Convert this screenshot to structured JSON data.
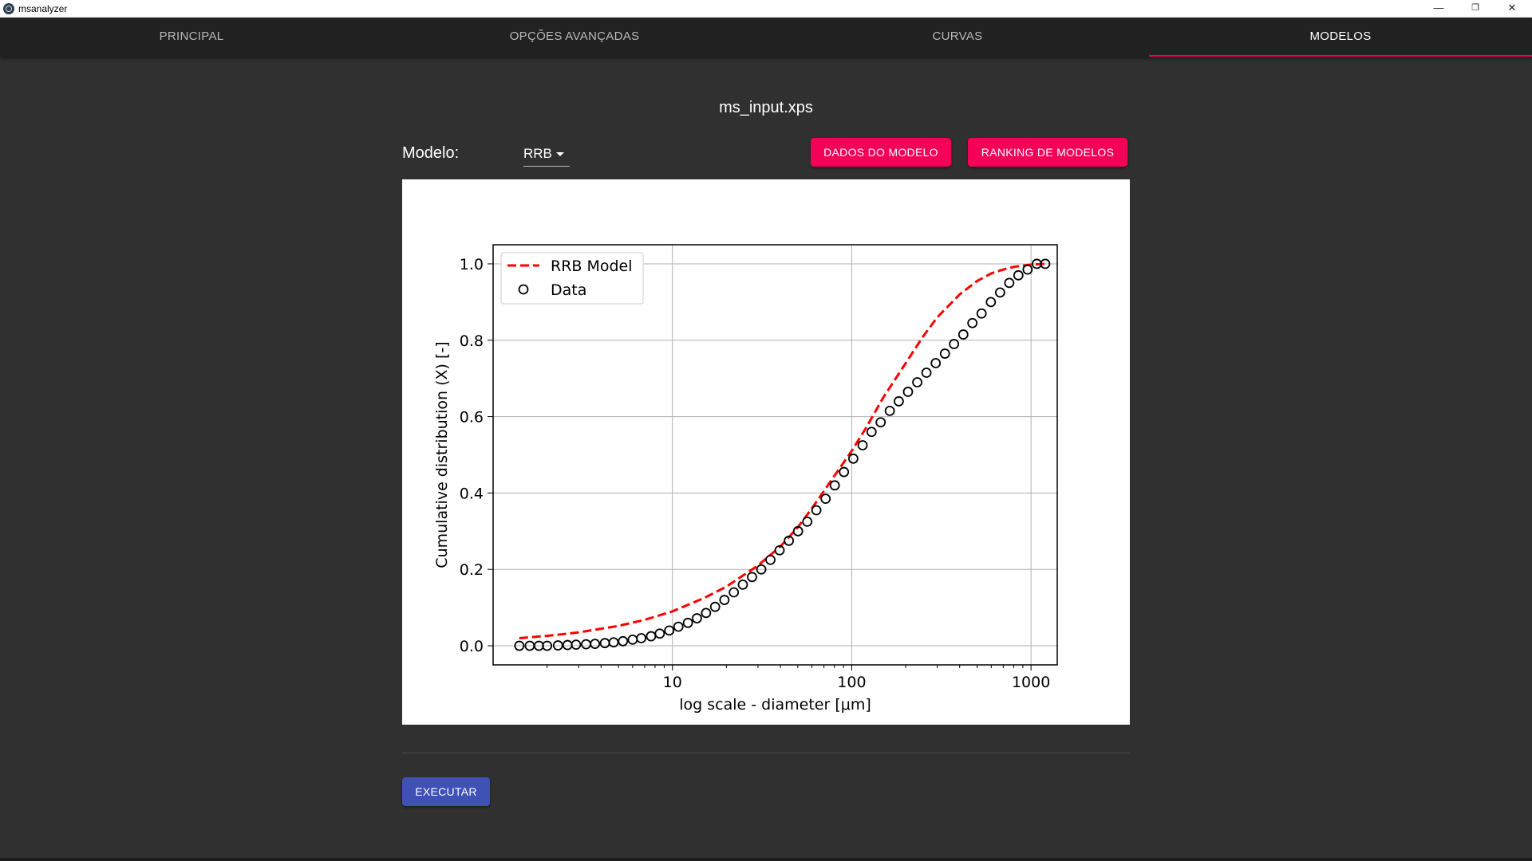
{
  "window": {
    "title": "msanalyzer",
    "minimize": "—",
    "restore": "❐",
    "close": "✕"
  },
  "tabs": [
    {
      "label": "PRINCIPAL",
      "active": false
    },
    {
      "label": "OPÇÕES AVANÇADAS",
      "active": false
    },
    {
      "label": "CURVAS",
      "active": false
    },
    {
      "label": "MODELOS",
      "active": true
    }
  ],
  "main": {
    "filename": "ms_input.xps",
    "model_label": "Modelo:",
    "model_value": "RRB",
    "btn_model_data": "DADOS DO MODELO",
    "btn_ranking": "RANKING DE MODELOS",
    "btn_execute": "EXECUTAR"
  },
  "colors": {
    "accent": "#f50057",
    "primary": "#3f51b5",
    "background": "#303030",
    "navbar": "#212121"
  },
  "chart_data": {
    "type": "line",
    "title": "",
    "xlabel": "log scale - diameter [μm]",
    "ylabel": "Cumulative distribution (X) [-]",
    "xscale": "log",
    "xlim": [
      1.0,
      1400
    ],
    "ylim": [
      -0.05,
      1.05
    ],
    "xticks": [
      10,
      100,
      1000
    ],
    "xtick_labels": [
      "10",
      "100",
      "1000"
    ],
    "yticks": [
      0.0,
      0.2,
      0.4,
      0.6,
      0.8,
      1.0
    ],
    "ytick_labels": [
      "0.0",
      "0.2",
      "0.4",
      "0.6",
      "0.8",
      "1.0"
    ],
    "grid": true,
    "legend_position": "upper-left",
    "series": [
      {
        "name": "RRB Model",
        "kind": "line",
        "style": "dashed",
        "color": "#ff0000",
        "x": [
          1.4,
          2,
          3,
          5,
          7,
          10,
          15,
          20,
          30,
          40,
          50,
          60,
          70,
          80,
          100,
          120,
          150,
          200,
          250,
          300,
          400,
          500,
          600,
          700,
          800,
          1000,
          1200
        ],
        "y": [
          0.02,
          0.026,
          0.035,
          0.052,
          0.068,
          0.09,
          0.125,
          0.155,
          0.21,
          0.26,
          0.31,
          0.36,
          0.405,
          0.445,
          0.51,
          0.57,
          0.65,
          0.74,
          0.81,
          0.86,
          0.92,
          0.955,
          0.975,
          0.985,
          0.992,
          0.998,
          1.0
        ]
      },
      {
        "name": "Data",
        "kind": "scatter",
        "marker": "open-circle",
        "color": "#000000",
        "x": [
          1.4,
          1.6,
          1.8,
          2.0,
          2.3,
          2.6,
          2.9,
          3.3,
          3.7,
          4.2,
          4.7,
          5.3,
          6.0,
          6.7,
          7.6,
          8.5,
          9.6,
          10.8,
          12.2,
          13.7,
          15.4,
          17.3,
          19.5,
          22,
          24.7,
          27.8,
          31.3,
          35.2,
          39.6,
          44.6,
          50.2,
          56.5,
          63.5,
          71.5,
          80.4,
          90.5,
          102,
          115,
          129,
          145,
          163,
          183,
          206,
          232,
          261,
          294,
          331,
          372,
          419,
          471,
          530,
          597,
          672,
          756,
          850,
          957,
          1077,
          1200
        ],
        "y": [
          0.0,
          0.0,
          0.0,
          0.0,
          0.001,
          0.002,
          0.003,
          0.004,
          0.005,
          0.007,
          0.009,
          0.012,
          0.016,
          0.02,
          0.025,
          0.032,
          0.04,
          0.05,
          0.06,
          0.072,
          0.086,
          0.102,
          0.12,
          0.14,
          0.16,
          0.18,
          0.2,
          0.225,
          0.25,
          0.275,
          0.3,
          0.325,
          0.355,
          0.385,
          0.42,
          0.455,
          0.49,
          0.525,
          0.56,
          0.585,
          0.615,
          0.64,
          0.665,
          0.69,
          0.715,
          0.74,
          0.765,
          0.79,
          0.815,
          0.845,
          0.87,
          0.9,
          0.925,
          0.95,
          0.97,
          0.985,
          1.0,
          1.0
        ]
      }
    ]
  }
}
